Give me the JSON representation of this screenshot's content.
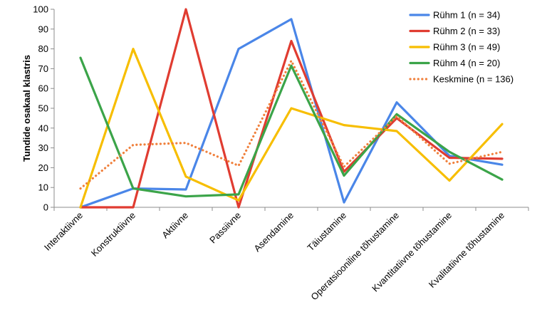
{
  "chart_data": {
    "type": "line",
    "title": "",
    "ylabel": "Tundide  osakaal klastris",
    "xlabel": "",
    "ylim": [
      0,
      100
    ],
    "yticks": [
      0,
      10,
      20,
      30,
      40,
      50,
      60,
      70,
      80,
      90,
      100
    ],
    "grid": false,
    "legend_position": "top-right",
    "categories": [
      "Interaktiivne",
      "Konstruktiivne",
      "Aktiivne",
      "Passiivne",
      "Asendamine",
      "Täiustamine",
      "Operatsiooniline tõhustamine",
      "Kvantitatiivne tõhustamine",
      "Kvalitatiivne tõhustamine"
    ],
    "series": [
      {
        "name": "Rühm 1 (n = 34)",
        "color": "#4A86E8",
        "style": "solid",
        "values": [
          0,
          9.5,
          9,
          80,
          95,
          2.5,
          53,
          26,
          21.5
        ]
      },
      {
        "name": "Rühm 2 (n = 33)",
        "color": "#E03C31",
        "style": "solid",
        "values": [
          0,
          0,
          100,
          0,
          84,
          18,
          45,
          25,
          24.5
        ]
      },
      {
        "name": "Rühm 3 (n = 49)",
        "color": "#F7BE00",
        "style": "solid",
        "values": [
          0,
          80,
          15.5,
          3.5,
          50,
          41.5,
          38.5,
          13.5,
          42
        ]
      },
      {
        "name": "Rühm 4 (n = 20)",
        "color": "#3BA449",
        "style": "solid",
        "values": [
          75.5,
          9.5,
          5.5,
          6.5,
          71.5,
          16,
          47,
          28,
          14
        ]
      },
      {
        "name": "Keskmine (n = 136)",
        "color": "#F0803C",
        "style": "dotted",
        "values": [
          9.5,
          31.5,
          32.5,
          21,
          74,
          20.5,
          46,
          22,
          28
        ]
      }
    ]
  }
}
